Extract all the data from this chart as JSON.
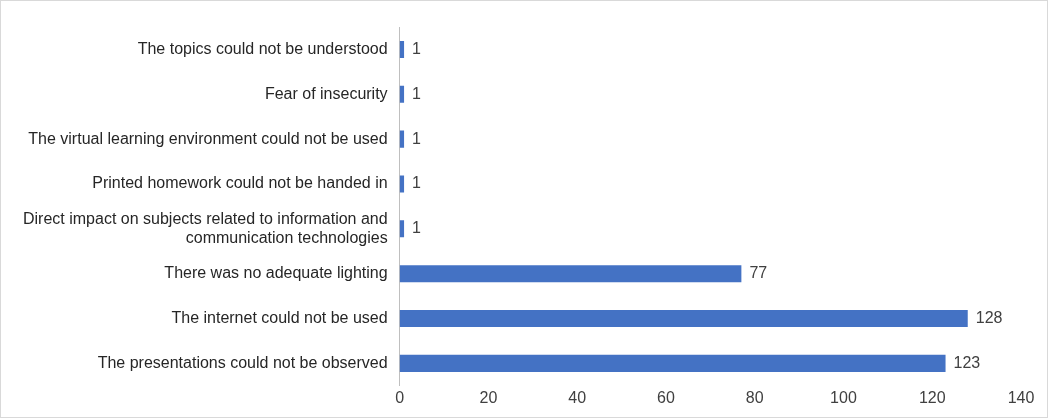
{
  "chart_data": {
    "type": "bar",
    "orientation": "horizontal",
    "categories": [
      "The topics could not be understood",
      "Fear of insecurity",
      "The virtual learning environment could not be used",
      "Printed homework could not be handed in",
      "Direct impact on subjects related to information and communication technologies",
      "There was no adequate lighting",
      "The internet could not be used",
      "The presentations could not be observed"
    ],
    "values": [
      1,
      1,
      1,
      1,
      1,
      77,
      128,
      123
    ],
    "color": "#4472c4",
    "xlim": [
      0,
      140
    ],
    "xticks": [
      0,
      20,
      40,
      60,
      80,
      100,
      120,
      140
    ],
    "grid": false,
    "legend": false,
    "data_labels": true
  }
}
